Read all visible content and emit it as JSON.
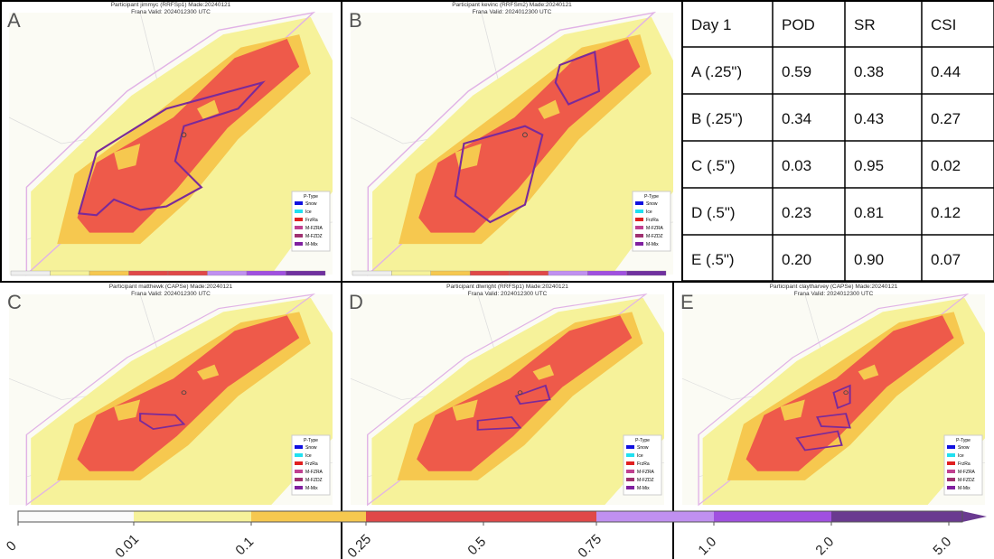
{
  "panels": [
    {
      "letter": "A",
      "title": "Participant jimmyc (RRFSp1) Made:20240121",
      "subtitle": "Frana Valid: 2024012300 UTC"
    },
    {
      "letter": "B",
      "title": "Participant kevinc (RRFSm2) Made:20240121",
      "subtitle": "Frana Valid: 2024012300 UTC"
    },
    {
      "letter": "C",
      "title": "Participant matthewk (CAPSe) Made:20240121",
      "subtitle": "Frana Valid: 2024012300 UTC"
    },
    {
      "letter": "D",
      "title": "Participant dlwright (RRFSp1) Made:20240121",
      "subtitle": "Frana Valid: 2024012300 UTC"
    },
    {
      "letter": "E",
      "title": "Participant claytharvey (CAPSe) Made:20240121",
      "subtitle": "Frana Valid: 2024012300 UTC"
    }
  ],
  "legend": {
    "title": "P-Type",
    "items": [
      "Snow",
      "Ice",
      "FrzRa",
      "M-FZRA",
      "M-FZDZ",
      "M-Mix"
    ]
  },
  "table": {
    "header": [
      "Day 1",
      "POD",
      "SR",
      "CSI"
    ],
    "rows": [
      [
        "A (.25\")",
        "0.59",
        "0.38",
        "0.44"
      ],
      [
        "B (.25\")",
        "0.34",
        "0.43",
        "0.27"
      ],
      [
        "C (.5\")",
        "0.03",
        "0.95",
        "0.02"
      ],
      [
        "D (.5\")",
        "0.23",
        "0.81",
        "0.12"
      ],
      [
        "E (.5\")",
        "0.20",
        "0.90",
        "0.07"
      ]
    ]
  },
  "colorbar": {
    "labels": [
      "0",
      "0.01",
      "0.1",
      "0.25",
      "0.5",
      "0.75",
      "1.0",
      "2.0",
      "5.0"
    ]
  }
}
